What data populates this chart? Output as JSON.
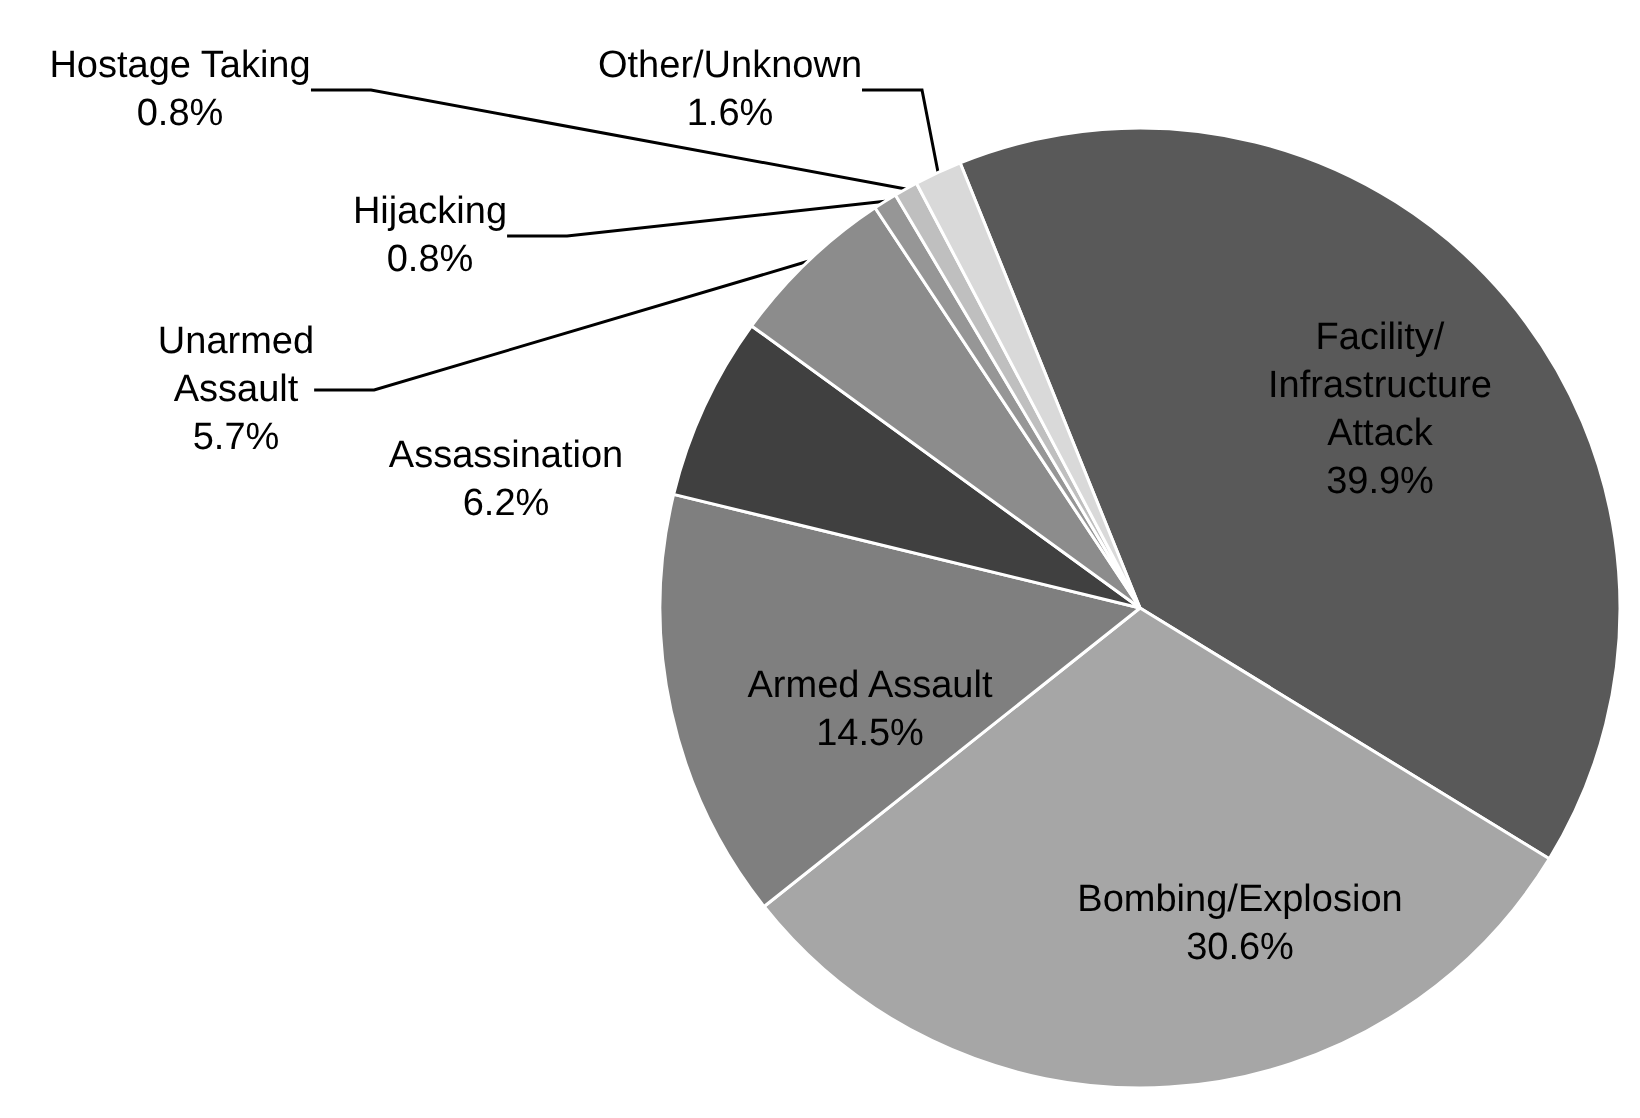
{
  "chart_data": {
    "type": "pie",
    "categories": [
      "Facility/\nInfrastructure\nAttack",
      "Bombing/Explosion",
      "Armed Assault",
      "Assassination",
      "Unarmed\nAssault",
      "Hijacking",
      "Hostage Taking",
      "Other/Unknown"
    ],
    "values": [
      39.9,
      30.6,
      14.5,
      6.2,
      5.7,
      0.8,
      0.8,
      1.6
    ],
    "value_labels": [
      "39.9%",
      "30.6%",
      "14.5%",
      "6.2%",
      "5.7%",
      "0.8%",
      "0.8%",
      "1.6%"
    ],
    "colors": [
      "#595959",
      "#a6a6a6",
      "#7f7f7f",
      "#404040",
      "#8c8c8c",
      "#969696",
      "#bfbfbf",
      "#d9d9d9"
    ],
    "legend": false
  }
}
